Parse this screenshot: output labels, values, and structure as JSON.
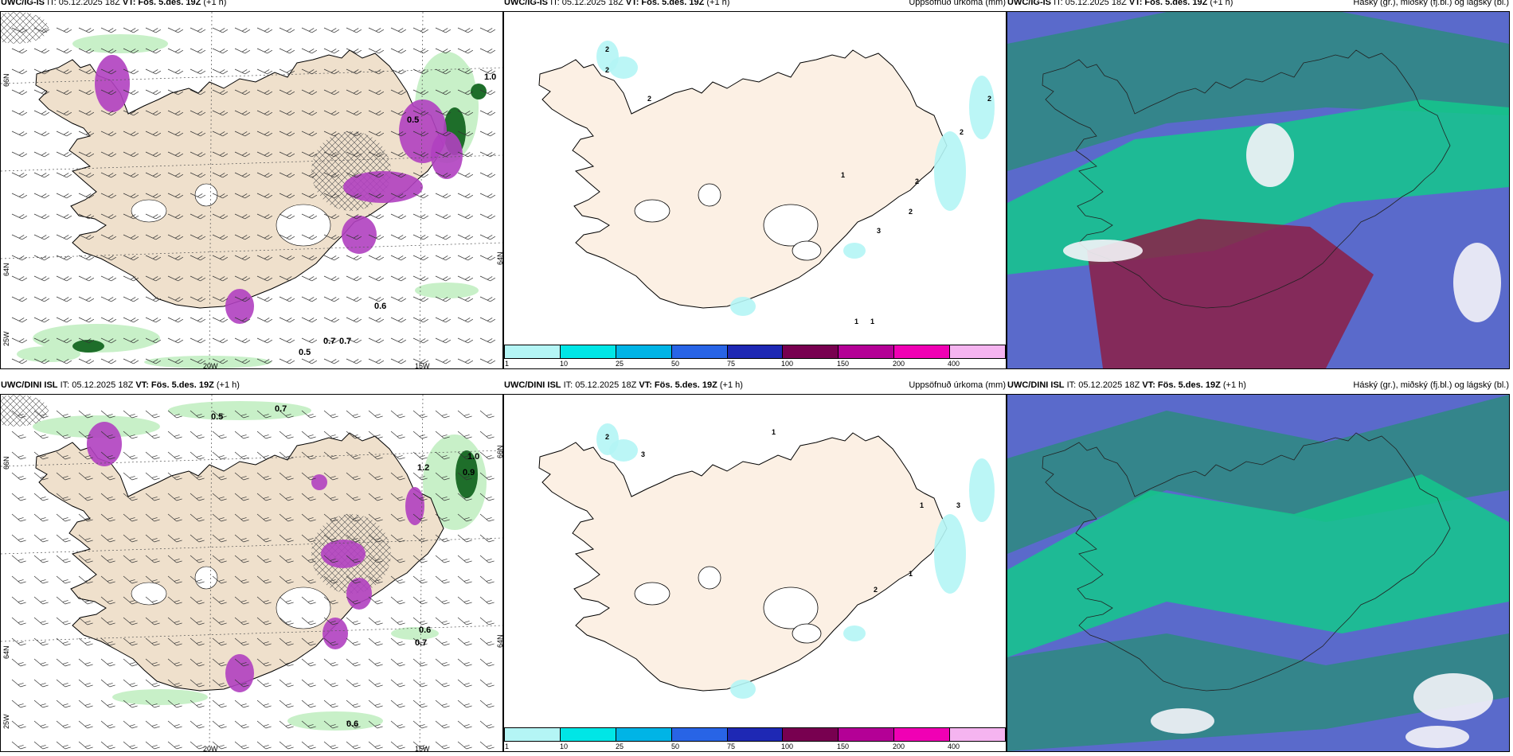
{
  "rows": [
    {
      "model": "UWC/IG-IS",
      "it": "IT: 05.12.2025 18Z",
      "vt_label": "VT:",
      "vt": "Fös. 5.des. 19Z",
      "lead": "(+1 h)",
      "precip_title": "Uppsöfnuð úrkoma (mm)",
      "cloud_title": "Háský (gr.), miðský (fj.bl.) og lágský (bl.)",
      "wind_values": [
        "1.0",
        "0.6",
        "0.7",
        "0.7",
        "0.5",
        "0.5"
      ],
      "precip_numbers": [
        "2",
        "2",
        "2",
        "2",
        "2",
        "2",
        "1",
        "2",
        "3",
        "1",
        "1"
      ]
    },
    {
      "model": "UWC/DINI ISL",
      "it": "IT: 05.12.2025 18Z",
      "vt_label": "VT:",
      "vt": "Fös. 5.des. 19Z",
      "lead": "(+1 h)",
      "precip_title": "Uppsöfnuð úrkoma (mm)",
      "cloud_title": "Háský (gr.), miðský (fj.bl.) og lágský (bl.)",
      "wind_values": [
        "0.5",
        "0.7",
        "1.0",
        "0.9",
        "1.2",
        "0.6",
        "0.7",
        "0.6"
      ],
      "precip_numbers": [
        "2",
        "3",
        "1",
        "1",
        "3",
        "2",
        "1"
      ]
    }
  ],
  "axis": {
    "lon_labels": [
      "20W",
      "15W"
    ],
    "lat_labels_left": [
      "66N",
      "64N",
      "25W"
    ],
    "lat_labels_right": [
      "66N",
      "64N"
    ]
  },
  "colorbar": {
    "labels": [
      "1",
      "10",
      "25",
      "50",
      "75",
      "100",
      "150",
      "200",
      "400"
    ],
    "colors": [
      "#b4f5f5",
      "#00e6e6",
      "#00b4e6",
      "#2864e6",
      "#1e28b4",
      "#780050",
      "#b40096",
      "#f000b4",
      "#f5b4f0"
    ]
  },
  "colors": {
    "land": "#efe0cc",
    "land_precip": "#fcf0e4",
    "sea": "#ffffff",
    "green_light": "#c8f0c8",
    "green_dark": "#1e6e2a",
    "purple": "#b040c0",
    "cloud_bg": "#5a6acb",
    "cloud_teal": "#2e8a80",
    "cloud_green": "#14c88c",
    "cloud_red": "#8c1e46"
  }
}
